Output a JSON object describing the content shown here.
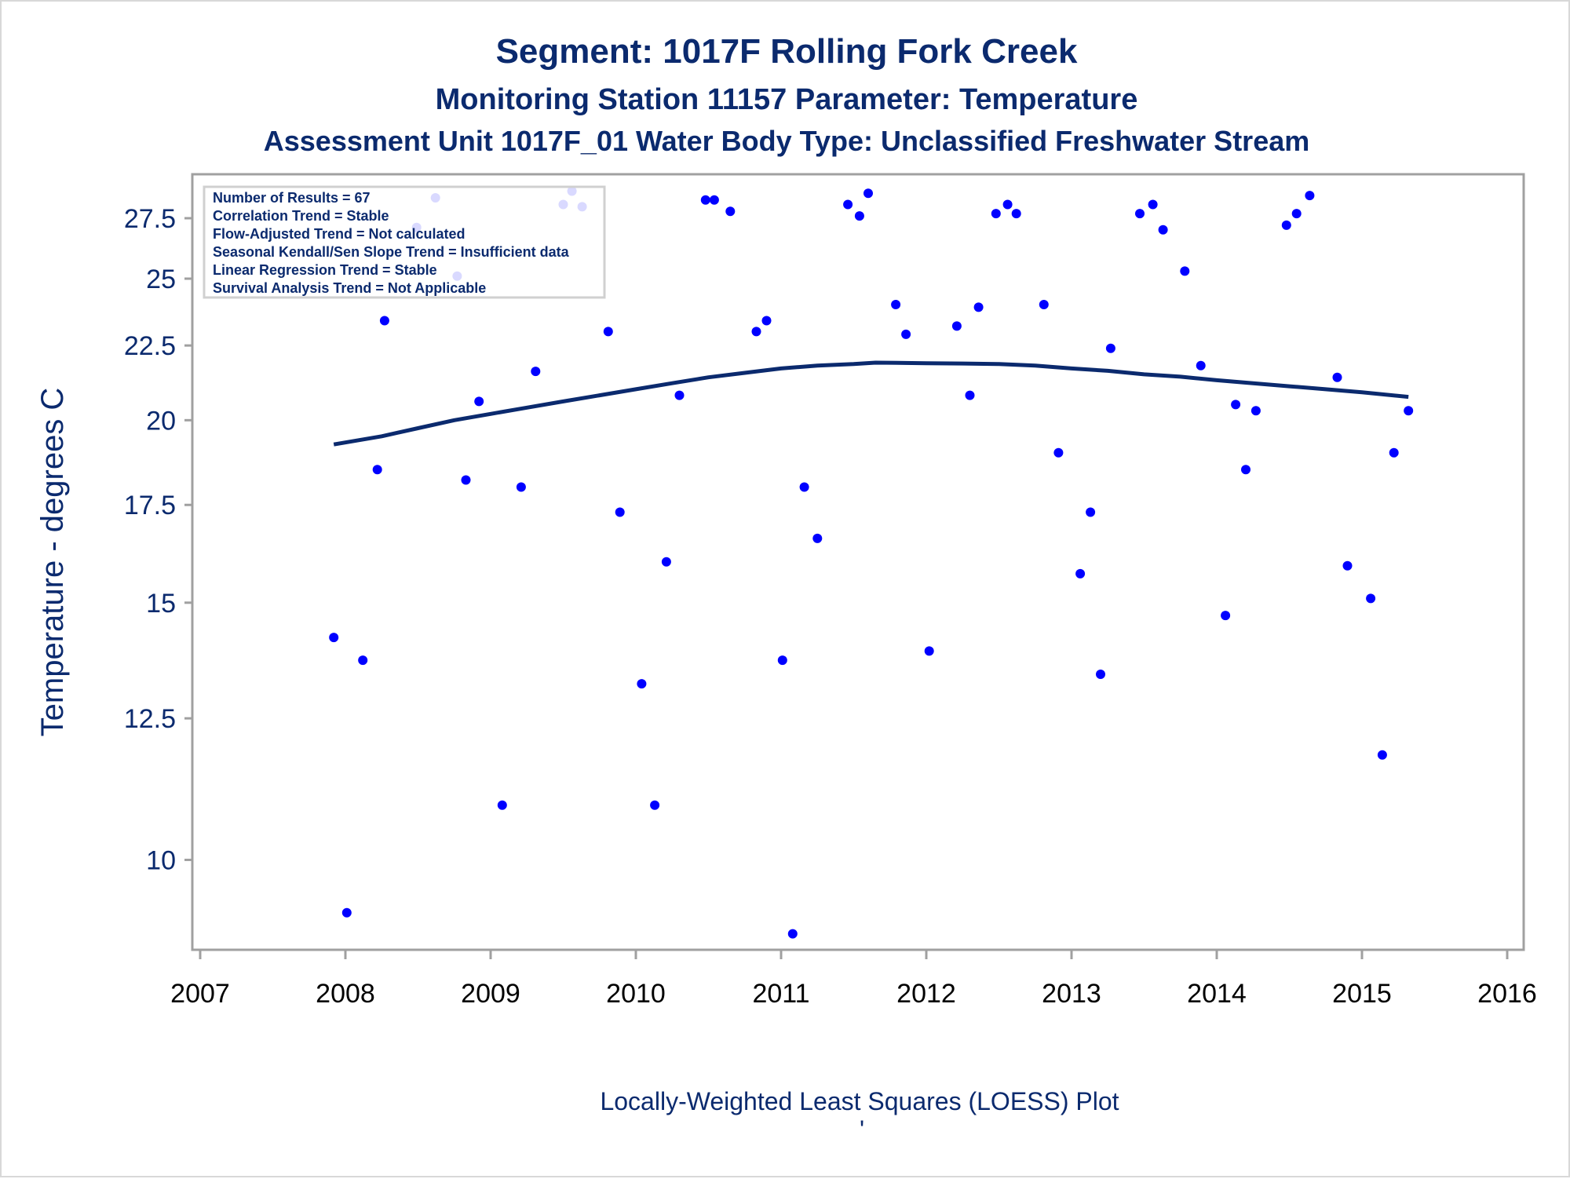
{
  "chart_data": {
    "type": "scatter",
    "title": "Segment: 1017F  Rolling Fork Creek",
    "subtitle": "Monitoring Station 11157 Parameter: Temperature",
    "subtitle2": "Assessment Unit 1017F_01   Water Body Type: Unclassified Freshwater Stream",
    "ylabel": "Temperature - degrees C",
    "footnote": "Locally-Weighted Least Squares (LOESS) Plot",
    "footnote_mark": "'",
    "x_ticks": [
      "2007",
      "2008",
      "2009",
      "2010",
      "2011",
      "2012",
      "2013",
      "2014",
      "2015",
      "2016"
    ],
    "y_ticks": [
      "10",
      "12.5",
      "15",
      "17.5",
      "20",
      "22.5",
      "25",
      "27.5"
    ],
    "xlim": [
      2007,
      2016
    ],
    "ylim": [
      8.7,
      29.4
    ],
    "y_scale": "log",
    "grid": false,
    "stats_box": [
      "Number of Results = 67",
      "Correlation Trend = Stable",
      "Flow-Adjusted Trend = Not calculated",
      "Seasonal Kendall/Sen Slope Trend = Insufficient data",
      "Linear Regression Trend = Stable",
      "Survival Analysis Trend = Not Applicable"
    ],
    "legend_position": "top-left",
    "colors": {
      "points": "#0000ff",
      "loess": "#0b2a6e",
      "text": "#0b2a6e",
      "axis": "#a0a0a0"
    },
    "points": [
      [
        2007.92,
        14.2
      ],
      [
        2008.01,
        9.2
      ],
      [
        2008.12,
        13.7
      ],
      [
        2008.22,
        18.5
      ],
      [
        2008.27,
        23.4
      ],
      [
        2008.49,
        27.1
      ],
      [
        2008.62,
        28.4
      ],
      [
        2008.77,
        25.1
      ],
      [
        2008.83,
        18.2
      ],
      [
        2008.92,
        20.6
      ],
      [
        2009.08,
        10.9
      ],
      [
        2009.21,
        18.0
      ],
      [
        2009.31,
        21.6
      ],
      [
        2009.5,
        28.1
      ],
      [
        2009.56,
        28.7
      ],
      [
        2009.63,
        28.0
      ],
      [
        2009.81,
        23.0
      ],
      [
        2009.89,
        17.3
      ],
      [
        2010.04,
        13.2
      ],
      [
        2010.13,
        10.9
      ],
      [
        2010.21,
        16.0
      ],
      [
        2010.3,
        20.8
      ],
      [
        2010.48,
        28.3
      ],
      [
        2010.54,
        28.3
      ],
      [
        2010.65,
        27.8
      ],
      [
        2010.83,
        23.0
      ],
      [
        2010.9,
        23.4
      ],
      [
        2011.01,
        13.7
      ],
      [
        2011.08,
        8.9
      ],
      [
        2011.16,
        18.0
      ],
      [
        2011.25,
        16.6
      ],
      [
        2011.46,
        28.1
      ],
      [
        2011.54,
        27.6
      ],
      [
        2011.6,
        28.6
      ],
      [
        2011.79,
        24.0
      ],
      [
        2011.86,
        22.9
      ],
      [
        2012.02,
        13.9
      ],
      [
        2012.21,
        23.2
      ],
      [
        2012.3,
        20.8
      ],
      [
        2012.36,
        23.9
      ],
      [
        2012.48,
        27.7
      ],
      [
        2012.56,
        28.1
      ],
      [
        2012.62,
        27.7
      ],
      [
        2012.81,
        24.0
      ],
      [
        2012.91,
        19.0
      ],
      [
        2013.06,
        15.7
      ],
      [
        2013.13,
        17.3
      ],
      [
        2013.2,
        13.4
      ],
      [
        2013.27,
        22.4
      ],
      [
        2013.47,
        27.7
      ],
      [
        2013.56,
        28.1
      ],
      [
        2013.63,
        27.0
      ],
      [
        2013.78,
        25.3
      ],
      [
        2013.89,
        21.8
      ],
      [
        2014.06,
        14.7
      ],
      [
        2014.13,
        20.5
      ],
      [
        2014.2,
        18.5
      ],
      [
        2014.27,
        20.3
      ],
      [
        2014.48,
        27.2
      ],
      [
        2014.55,
        27.7
      ],
      [
        2014.64,
        28.5
      ],
      [
        2014.83,
        21.4
      ],
      [
        2014.9,
        15.9
      ],
      [
        2015.06,
        15.1
      ],
      [
        2015.14,
        11.8
      ],
      [
        2015.22,
        19.0
      ],
      [
        2015.32,
        20.3
      ]
    ],
    "loess": [
      [
        2007.92,
        19.25
      ],
      [
        2008.25,
        19.5
      ],
      [
        2008.5,
        19.75
      ],
      [
        2008.75,
        20.0
      ],
      [
        2009.0,
        20.2
      ],
      [
        2009.25,
        20.4
      ],
      [
        2009.5,
        20.6
      ],
      [
        2009.75,
        20.8
      ],
      [
        2010.0,
        21.0
      ],
      [
        2010.25,
        21.2
      ],
      [
        2010.5,
        21.4
      ],
      [
        2010.75,
        21.55
      ],
      [
        2011.0,
        21.7
      ],
      [
        2011.25,
        21.8
      ],
      [
        2011.5,
        21.85
      ],
      [
        2011.65,
        21.9
      ],
      [
        2012.0,
        21.88
      ],
      [
        2012.25,
        21.87
      ],
      [
        2012.5,
        21.85
      ],
      [
        2012.75,
        21.8
      ],
      [
        2013.0,
        21.7
      ],
      [
        2013.25,
        21.62
      ],
      [
        2013.5,
        21.5
      ],
      [
        2013.75,
        21.42
      ],
      [
        2014.0,
        21.3
      ],
      [
        2014.25,
        21.2
      ],
      [
        2014.5,
        21.1
      ],
      [
        2014.75,
        21.0
      ],
      [
        2015.0,
        20.9
      ],
      [
        2015.32,
        20.75
      ]
    ]
  }
}
